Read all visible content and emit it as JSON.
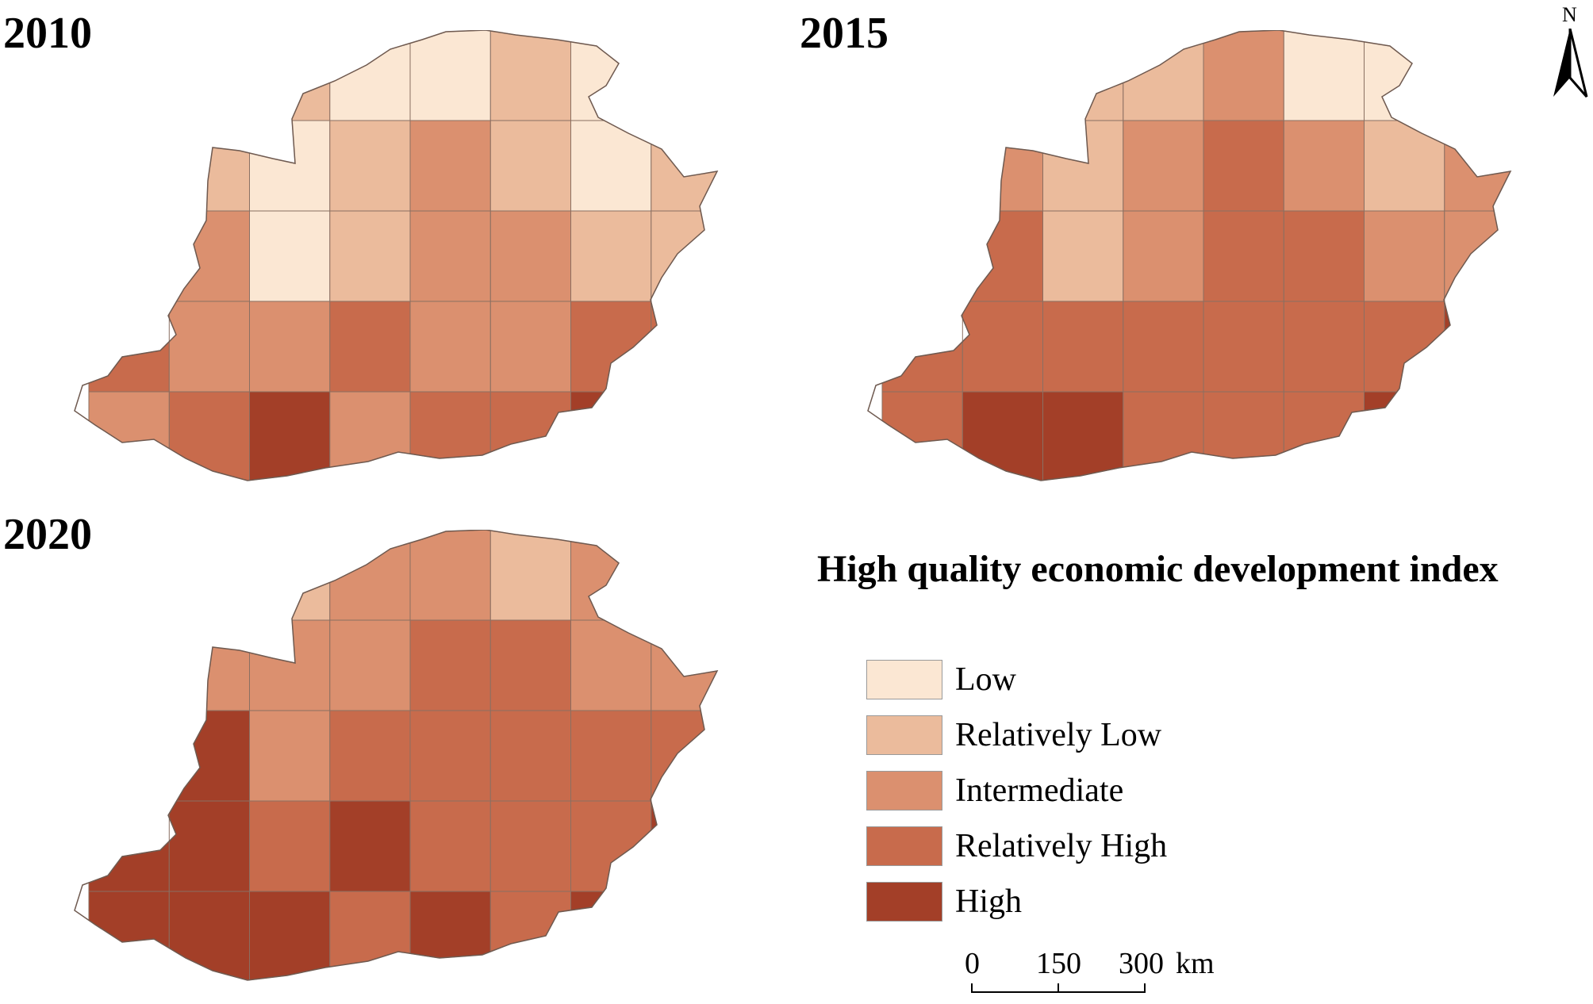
{
  "panels": [
    {
      "year": "2010",
      "classes": [
        0,
        0,
        1,
        0,
        0,
        1,
        0,
        1,
        2,
        1,
        0,
        1,
        2,
        1,
        0,
        1,
        1,
        2,
        0,
        1,
        2,
        2,
        1,
        1,
        3,
        2,
        2,
        3,
        2,
        2,
        3,
        3,
        2,
        3,
        4,
        2,
        3,
        3,
        4,
        3
      ]
    },
    {
      "year": "2015",
      "classes": [
        1,
        0,
        1,
        1,
        2,
        0,
        0,
        1,
        2,
        2,
        1,
        2,
        3,
        2,
        1,
        2,
        2,
        3,
        1,
        2,
        3,
        3,
        2,
        2,
        3,
        3,
        3,
        3,
        3,
        3,
        3,
        4,
        3,
        4,
        4,
        3,
        3,
        3,
        4,
        4
      ]
    },
    {
      "year": "2020",
      "classes": [
        1,
        1,
        1,
        2,
        2,
        1,
        2,
        2,
        3,
        2,
        2,
        2,
        3,
        3,
        2,
        2,
        3,
        4,
        2,
        3,
        3,
        3,
        3,
        3,
        4,
        4,
        3,
        4,
        3,
        3,
        3,
        4,
        4,
        4,
        4,
        3,
        4,
        3,
        4,
        4
      ]
    }
  ],
  "north_arrow": {
    "label": "N"
  },
  "legend": {
    "title": "High quality economic development index",
    "items": [
      {
        "label": "Low",
        "color": "#fbe7d3"
      },
      {
        "label": "Relatively Low",
        "color": "#ebbb9c"
      },
      {
        "label": "Intermediate",
        "color": "#db906f"
      },
      {
        "label": "Relatively High",
        "color": "#c86b4c"
      },
      {
        "label": "High",
        "color": "#a33f28"
      }
    ]
  },
  "scale_bar": {
    "ticks": [
      "0",
      "150",
      "300"
    ],
    "unit": "km"
  }
}
